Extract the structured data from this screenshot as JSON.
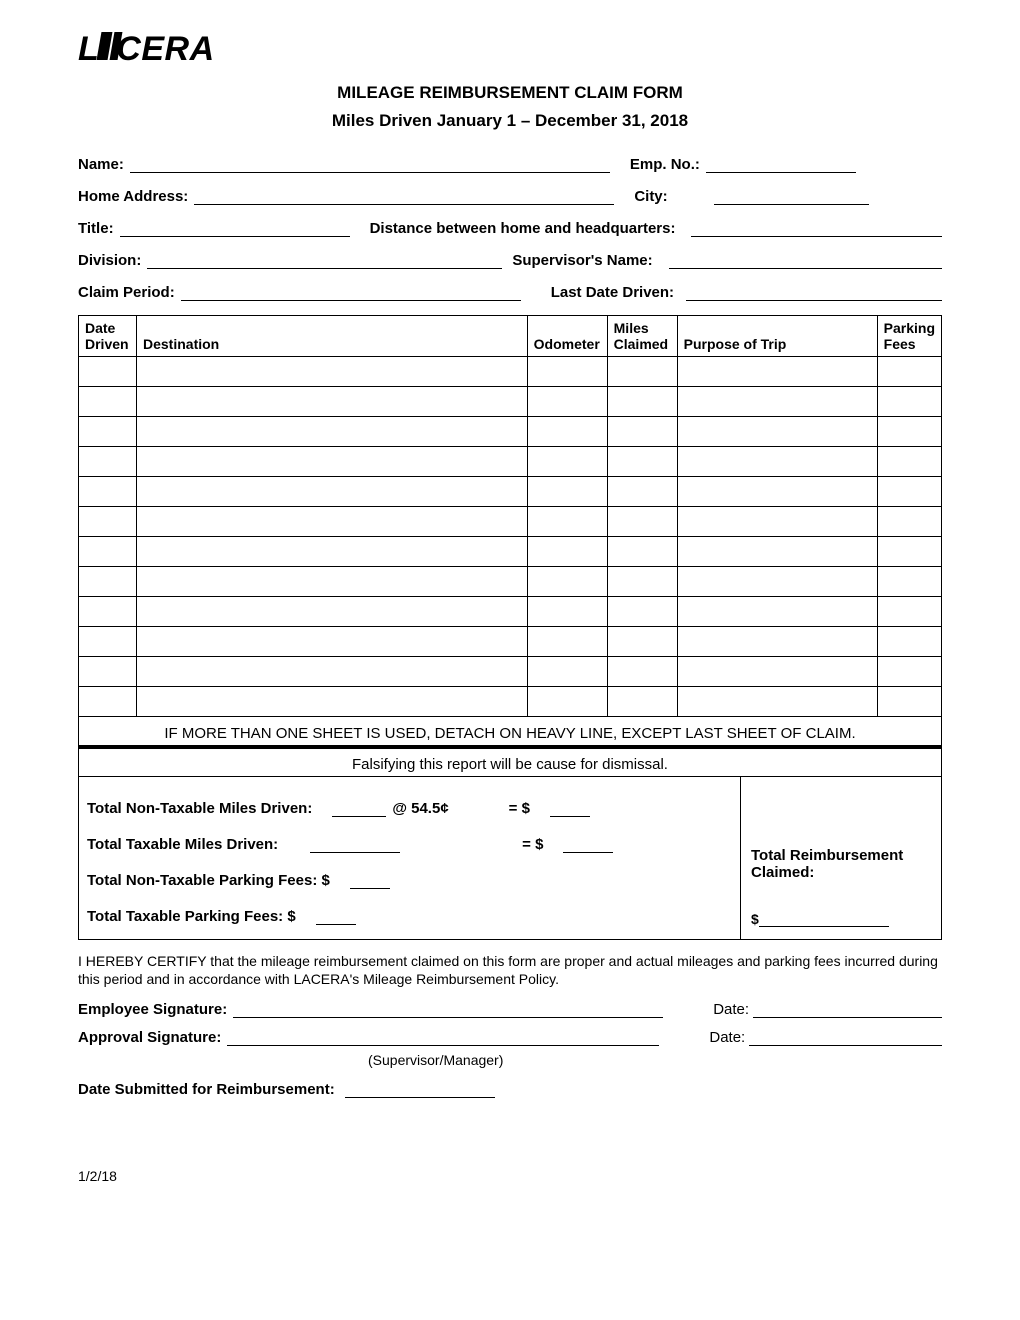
{
  "logo_text": "LACERA",
  "title": "MILEAGE REIMBURSEMENT CLAIM FORM",
  "subtitle": "Miles Driven January 1 – December 31, 2018",
  "fields": {
    "name_label": "Name:",
    "emp_no_label": "Emp. No.:",
    "home_address_label": "Home Address:",
    "city_label": "City:",
    "title_label": "Title:",
    "distance_label": "Distance between home and headquarters:",
    "division_label": "Division:",
    "supervisor_label": "Supervisor's Name:",
    "claim_period_label": "Claim Period:",
    "last_date_label": "Last Date Driven:"
  },
  "table": {
    "headers": {
      "date_driven": "Date Driven",
      "destination": "Destination",
      "odometer": "Odometer",
      "miles_claimed": "Miles Claimed",
      "purpose": "Purpose of Trip",
      "parking": "Parking Fees"
    },
    "row_count": 12,
    "note1": "IF MORE THAN ONE SHEET IS USED, DETACH ON HEAVY LINE, EXCEPT LAST SHEET OF CLAIM.",
    "note2": "Falsifying this report will be cause for dismissal."
  },
  "totals": {
    "nontax_miles_label": "Total Non-Taxable Miles Driven:",
    "rate_text": "@ 54.5¢",
    "equals_text": "= $",
    "tax_miles_label": "Total Taxable Miles Driven:",
    "nontax_parking_label": "Total Non-Taxable Parking Fees: $",
    "tax_parking_label": "Total Taxable Parking Fees: $",
    "reimbursement_label": "Total Reimbursement Claimed:",
    "dollar_sign": "$"
  },
  "certification_text": "I HEREBY CERTIFY that the mileage reimbursement claimed on this form are proper and actual mileages and parking fees incurred during this period and in accordance with LACERA's Mileage Reimbursement Policy.",
  "signatures": {
    "employee_label": "Employee Signature:",
    "approval_label": "Approval Signature:",
    "date_label": "Date:",
    "supervisor_note": "(Supervisor/Manager)",
    "submitted_label": "Date Submitted for Reimbursement:"
  },
  "footer_date": "1/2/18",
  "colors": {
    "text": "#000000",
    "background": "#ffffff",
    "border": "#000000"
  }
}
